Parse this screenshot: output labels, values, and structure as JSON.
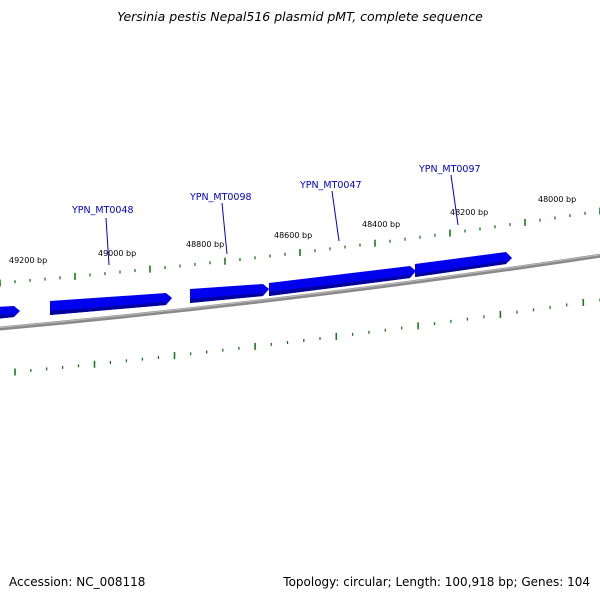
{
  "title": "Yersinia pestis Nepal516 plasmid pMT, complete sequence",
  "footer": {
    "accession": "Accession: NC_008118",
    "topology": "Topology: circular; Length: 100,918 bp; Genes: 104"
  },
  "colors": {
    "gene": "#0000ee",
    "gene_dark": "#00009a",
    "tick": "#1a7a1a",
    "backbone": "#8a8a8a",
    "label": "#0000cc"
  },
  "tick_labels": [
    {
      "label": "49200 bp",
      "bp": 49200
    },
    {
      "label": "49000 bp",
      "bp": 49000
    },
    {
      "label": "48800 bp",
      "bp": 48800
    },
    {
      "label": "48600 bp",
      "bp": 48600
    },
    {
      "label": "48400 bp",
      "bp": 48400
    },
    {
      "label": "48200 bp",
      "bp": 48200
    },
    {
      "label": "48000 bp",
      "bp": 48000
    }
  ],
  "gene_labels": [
    {
      "name": "YPN_MT0048"
    },
    {
      "name": "YPN_MT0098"
    },
    {
      "name": "YPN_MT0047"
    },
    {
      "name": "YPN_MT0097"
    }
  ]
}
